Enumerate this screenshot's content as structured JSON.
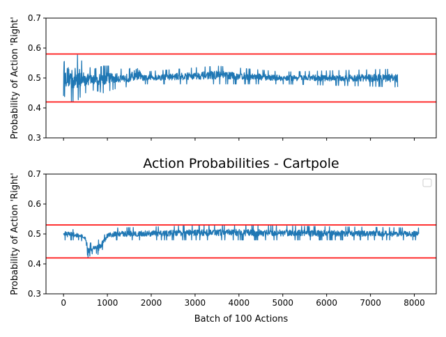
{
  "colors": {
    "series": "#1f77b4",
    "reference": "#ff0000",
    "axes": "#000000"
  },
  "chart_data": [
    {
      "type": "line",
      "title": "",
      "xlabel": "",
      "ylabel": "Probability of Action 'Right'",
      "xlim": [
        -400,
        8500
      ],
      "ylim": [
        0.3,
        0.7
      ],
      "xticks": [
        0,
        1000,
        2000,
        3000,
        4000,
        5000,
        6000,
        7000,
        8000
      ],
      "xtick_labels_shown": false,
      "yticks": [
        0.3,
        0.4,
        0.5,
        0.6,
        0.7
      ],
      "ytick_labels": [
        "0.3",
        "0.4",
        "0.5",
        "0.6",
        "0.7"
      ],
      "reference_lines": [
        0.58,
        0.42
      ],
      "series": [
        {
          "x_range": [
            0,
            7620
          ],
          "envelope": [
            {
              "x": 0,
              "low": 0.44,
              "high": 0.55
            },
            {
              "x": 100,
              "low": 0.43,
              "high": 0.58
            },
            {
              "x": 200,
              "low": 0.42,
              "high": 0.57
            },
            {
              "x": 300,
              "low": 0.42,
              "high": 0.58
            },
            {
              "x": 400,
              "low": 0.44,
              "high": 0.56
            },
            {
              "x": 500,
              "low": 0.45,
              "high": 0.54
            },
            {
              "x": 700,
              "low": 0.46,
              "high": 0.53
            },
            {
              "x": 900,
              "low": 0.45,
              "high": 0.54
            },
            {
              "x": 1100,
              "low": 0.46,
              "high": 0.54
            },
            {
              "x": 1300,
              "low": 0.47,
              "high": 0.53
            },
            {
              "x": 1500,
              "low": 0.47,
              "high": 0.53
            },
            {
              "x": 1700,
              "low": 0.47,
              "high": 0.56
            },
            {
              "x": 1800,
              "low": 0.48,
              "high": 0.52
            },
            {
              "x": 3500,
              "low": 0.48,
              "high": 0.54
            },
            {
              "x": 5000,
              "low": 0.48,
              "high": 0.52
            },
            {
              "x": 7620,
              "low": 0.47,
              "high": 0.53
            }
          ]
        }
      ]
    },
    {
      "type": "line",
      "title": "Action Probabilities - Cartpole",
      "xlabel": "Batch of 100 Actions",
      "ylabel": "Probability of Action 'Right'",
      "xlim": [
        -400,
        8500
      ],
      "ylim": [
        0.3,
        0.7
      ],
      "xticks": [
        0,
        1000,
        2000,
        3000,
        4000,
        5000,
        6000,
        7000,
        8000
      ],
      "xtick_labels": [
        "0",
        "1000",
        "2000",
        "3000",
        "4000",
        "5000",
        "6000",
        "7000",
        "8000"
      ],
      "yticks": [
        0.3,
        0.4,
        0.5,
        0.6,
        0.7
      ],
      "ytick_labels": [
        "0.3",
        "0.4",
        "0.5",
        "0.6",
        "0.7"
      ],
      "reference_lines": [
        0.53,
        0.42
      ],
      "legend": {
        "placement": "upper-right",
        "entries": []
      },
      "series": [
        {
          "x_range": [
            0,
            8100
          ],
          "envelope": [
            {
              "x": 0,
              "low": 0.48,
              "high": 0.52
            },
            {
              "x": 400,
              "low": 0.48,
              "high": 0.51
            },
            {
              "x": 500,
              "low": 0.46,
              "high": 0.5
            },
            {
              "x": 560,
              "low": 0.42,
              "high": 0.47
            },
            {
              "x": 700,
              "low": 0.44,
              "high": 0.47
            },
            {
              "x": 800,
              "low": 0.43,
              "high": 0.48
            },
            {
              "x": 900,
              "low": 0.45,
              "high": 0.49
            },
            {
              "x": 1000,
              "low": 0.48,
              "high": 0.51
            },
            {
              "x": 1200,
              "low": 0.48,
              "high": 0.52
            },
            {
              "x": 3500,
              "low": 0.48,
              "high": 0.53
            },
            {
              "x": 8100,
              "low": 0.48,
              "high": 0.52
            }
          ]
        }
      ]
    }
  ]
}
